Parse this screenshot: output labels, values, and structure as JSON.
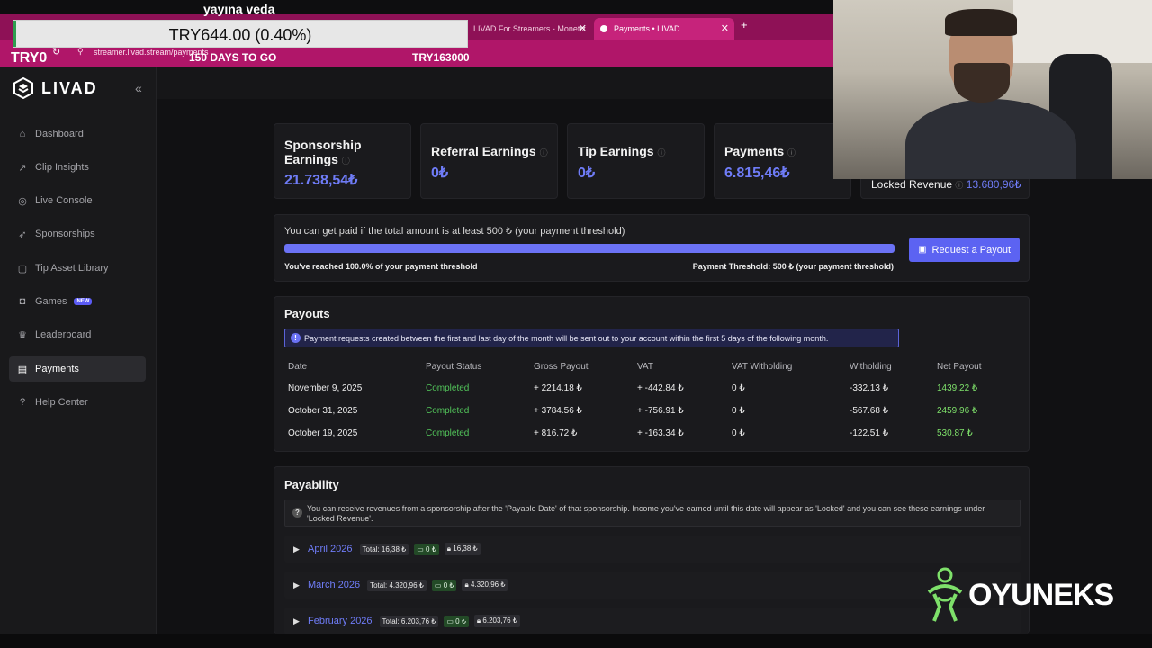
{
  "overlay": {
    "title": "yayına veda",
    "goal_text": "TRY644.00 (0.40%)",
    "goal_progress": 0.004,
    "goal_left": "TRY0",
    "goal_days": "150 DAYS TO GO",
    "goal_target": "TRY163000"
  },
  "browser": {
    "tabs": [
      {
        "label": "LIVAD For Streamers - Monetiz"
      },
      {
        "label": "Payments • LIVAD"
      }
    ],
    "url": "streamer.livad.stream/payments"
  },
  "sidebar": {
    "brand": "LIVAD",
    "items": [
      {
        "label": "Dashboard",
        "icon": "home-icon"
      },
      {
        "label": "Clip Insights",
        "icon": "chart-icon"
      },
      {
        "label": "Live Console",
        "icon": "broadcast-icon"
      },
      {
        "label": "Sponsorships",
        "icon": "rocket-icon"
      },
      {
        "label": "Tip Asset Library",
        "icon": "library-icon"
      },
      {
        "label": "Games",
        "icon": "gamepad-icon",
        "badge": "NEW"
      },
      {
        "label": "Leaderboard",
        "icon": "trophy-icon"
      },
      {
        "label": "Payments",
        "icon": "wallet-icon",
        "active": true
      },
      {
        "label": "Help Center",
        "icon": "help-icon"
      }
    ]
  },
  "stats": {
    "sponsorship": {
      "title_line1": "Sponsorship",
      "title_line2": "Earnings",
      "value": "21.738,54₺"
    },
    "referral": {
      "title": "Referral Earnings",
      "value": "0₺"
    },
    "tip": {
      "title": "Tip Earnings",
      "value": "0₺"
    },
    "payments": {
      "title": "Payments",
      "value": "6.815,46₺"
    },
    "locked": {
      "title": "Locked Revenue",
      "value": "13.680,96₺"
    }
  },
  "threshold": {
    "text": "You can get paid if the total amount is at least 500 ₺ (your payment threshold)",
    "progress": 1.0,
    "reached": "You've reached 100.0% of your payment threshold",
    "threshold_label": "Payment Threshold: 500 ₺ (your payment threshold)",
    "button": "Request a Payout"
  },
  "payouts": {
    "title": "Payouts",
    "notice": "Payment requests created between the first and last day of the month will be sent out to your account within the first 5 days of the following month.",
    "columns": [
      "Date",
      "Payout Status",
      "Gross Payout",
      "VAT",
      "VAT Witholding",
      "Witholding",
      "Net Payout"
    ],
    "rows": [
      [
        "November 9, 2025",
        "Completed",
        "+ 2214.18 ₺",
        "+ -442.84 ₺",
        "0 ₺",
        "-332.13 ₺",
        "1439.22 ₺"
      ],
      [
        "October 31, 2025",
        "Completed",
        "+ 3784.56 ₺",
        "+ -756.91 ₺",
        "0 ₺",
        "-567.68 ₺",
        "2459.96 ₺"
      ],
      [
        "October 19, 2025",
        "Completed",
        "+ 816.72 ₺",
        "+ -163.34 ₺",
        "0 ₺",
        "-122.51 ₺",
        "530.87 ₺"
      ]
    ]
  },
  "payability": {
    "title": "Payability",
    "notice": "You can receive revenues from a sponsorship after the 'Payable Date' of that sponsorship. Income you've earned until this date will appear as 'Locked' and you can see these earnings under 'Locked Revenue'.",
    "months": [
      {
        "name": "April 2026",
        "total": "Total: 16,38 ₺",
        "payable": "0 ₺",
        "locked": "16,38 ₺"
      },
      {
        "name": "March 2026",
        "total": "Total: 4.320,96 ₺",
        "payable": "0 ₺",
        "locked": "4.320,96 ₺"
      },
      {
        "name": "February 2026",
        "total": "Total: 6.203,76 ₺",
        "payable": "0 ₺",
        "locked": "6.203,76 ₺"
      }
    ]
  },
  "watermark": "OYUNEKS",
  "colors": {
    "accent": "#6f7cf7",
    "success": "#52c45a",
    "browser_theme": "#b01669"
  }
}
